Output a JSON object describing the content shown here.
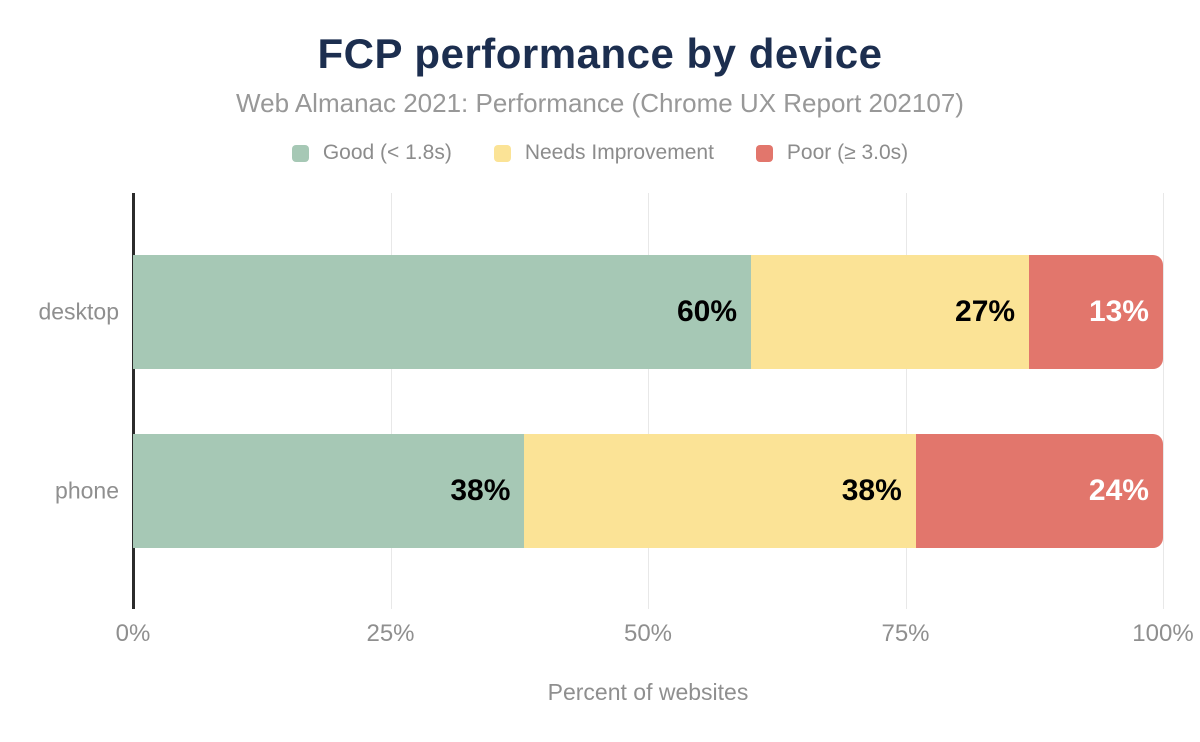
{
  "colors": {
    "background": "#ffffff",
    "title_text": "#1c2e4f",
    "subtitle_text": "#989898",
    "legend_text": "#8c8c8c",
    "tick_text": "#8f8f8f",
    "axis_line": "#2b2b2b",
    "gridline": "#e8e8e8",
    "good": "#a6c8b5",
    "needs_improvement": "#fbe396",
    "poor": "#e2766c"
  },
  "chart_data": {
    "type": "bar",
    "orientation": "horizontal",
    "stacked": true,
    "title": "FCP performance by device",
    "subtitle": "Web Almanac 2021: Performance (Chrome UX Report 202107)",
    "xlabel": "Percent of websites",
    "xlim": [
      0,
      100
    ],
    "legend_position": "top",
    "grid": "vertical",
    "gridlines_at": [
      25,
      50,
      75,
      100
    ],
    "categories": [
      "desktop",
      "phone"
    ],
    "series": [
      {
        "name": "Good (< 1.8s)",
        "color": "#a6c8b5",
        "label_color": "#000000",
        "values": [
          60,
          38
        ]
      },
      {
        "name": "Needs Improvement",
        "color": "#fbe396",
        "label_color": "#000000",
        "values": [
          27,
          38
        ]
      },
      {
        "name": "Poor (≥ 3.0s)",
        "color": "#e2766c",
        "label_color": "#ffffff",
        "values": [
          13,
          24
        ]
      }
    ],
    "data_labels": [
      [
        "60%",
        "27%",
        "13%"
      ],
      [
        "38%",
        "38%",
        "24%"
      ]
    ],
    "x_ticks": [
      {
        "value": 0,
        "label": "0%"
      },
      {
        "value": 25,
        "label": "25%"
      },
      {
        "value": 50,
        "label": "50%"
      },
      {
        "value": 75,
        "label": "75%"
      },
      {
        "value": 100,
        "label": "100%"
      }
    ]
  }
}
